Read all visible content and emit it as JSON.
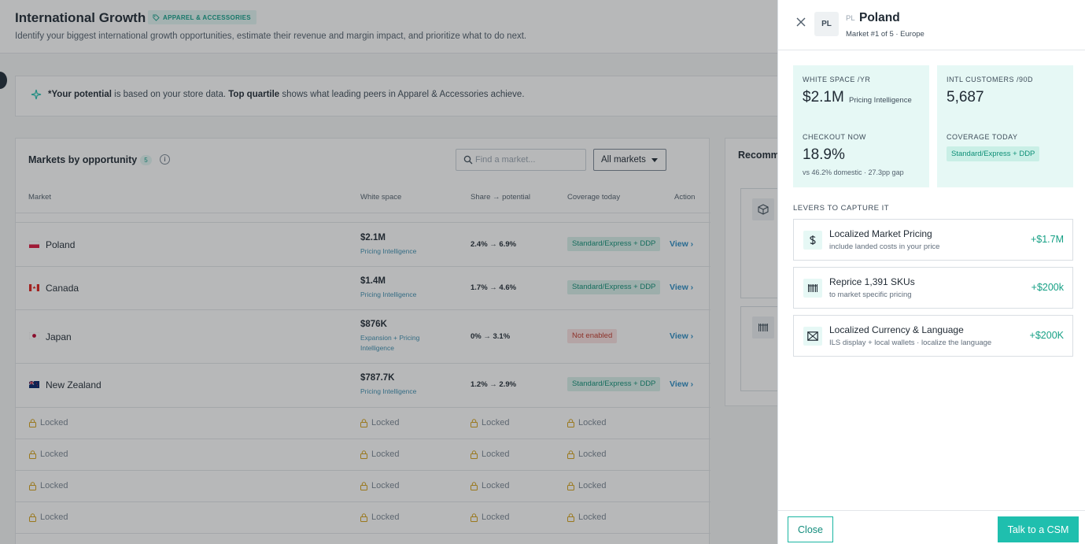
{
  "header": {
    "title": "International Growth",
    "category_badge": "APPAREL & ACCESSORIES",
    "subtitle": "Identify your biggest international growth opportunities, estimate their revenue and margin impact, and prioritize what to do next."
  },
  "note": {
    "strong1": "*Your potential",
    "text1": " is based on your store data. ",
    "strong2": "Top quartile",
    "text2": " shows what leading peers in Apparel & Accessories achieve."
  },
  "markets_card": {
    "title": "Markets by opportunity",
    "count": "5",
    "info": "i",
    "search_placeholder": "Find a market...",
    "filter_label": "All markets",
    "columns": [
      "Market",
      "White space",
      "Share → potential",
      "Coverage today",
      "Action"
    ],
    "rows": [
      {
        "market": "Poland",
        "white_space": "$2.1M",
        "source": "Pricing Intelligence",
        "share": "2.4%  →  6.9%",
        "coverage": "Standard/Express + DDP",
        "coverage_ok": true,
        "action": "View ›"
      },
      {
        "market": "Canada",
        "white_space": "$1.4M",
        "source": "Pricing Intelligence",
        "share": "1.7%  →  4.6%",
        "coverage": "Standard/Express + DDP",
        "coverage_ok": true,
        "action": "View ›"
      },
      {
        "market": "Japan",
        "white_space": "$876K",
        "source": "Expansion + Pricing Intelligence",
        "share": "0%  →  3.1%",
        "coverage": "Not enabled",
        "coverage_ok": false,
        "action": "View ›"
      },
      {
        "market": "New Zealand",
        "white_space": "$787.7K",
        "source": "Pricing Intelligence",
        "share": "1.2%  →  2.9%",
        "coverage": "Standard/Express + DDP",
        "coverage_ok": true,
        "action": "View ›"
      }
    ],
    "locked_label": "Locked"
  },
  "recommendations": {
    "title": "Recomm"
  },
  "drawer": {
    "code": "PL",
    "code_small": "PL",
    "title": "Poland",
    "subtitle": "Market #1 of 5 · Europe",
    "stats": {
      "white_space": {
        "label": "WHITE SPACE /YR",
        "value": "$2.1M",
        "note": "Pricing Intelligence"
      },
      "customers": {
        "label": "INTL CUSTOMERS /90D",
        "value": "5,687"
      },
      "checkout": {
        "label": "CHECKOUT NOW",
        "value": "18.9%",
        "foot": "vs 46.2% domestic · 27.3pp gap"
      },
      "coverage": {
        "label": "COVERAGE TODAY",
        "tag": "Standard/Express + DDP"
      }
    },
    "levers_title": "LEVERS TO CAPTURE IT",
    "levers": [
      {
        "icon": "dollar-icon",
        "name": "Localized Market Pricing",
        "desc": "include landed costs in your price",
        "amount": "+$1.7M"
      },
      {
        "icon": "barcode-icon",
        "name": "Reprice 1,391 SKUs",
        "desc": "to market specific pricing",
        "amount": "+$200k"
      },
      {
        "icon": "currency-exchange-icon",
        "name": "Localized Currency & Language",
        "desc": "ILS display + local wallets · localize the language",
        "amount": "+$200K"
      }
    ],
    "close_button": "Close",
    "csm_button": "Talk to a CSM"
  },
  "colors": {
    "accent": "#1fbfae",
    "positive": "#16a085",
    "stat_bg": "#e6f8f5"
  }
}
